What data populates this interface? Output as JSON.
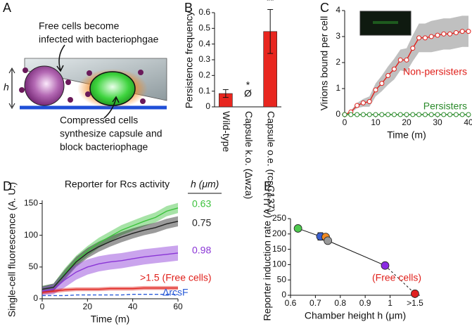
{
  "panel_a": {
    "panel": "A",
    "infected_text": [
      "Free cells become",
      "infected with bacteriophgae"
    ],
    "height_label": "h",
    "compressed_text": [
      "Compressed cells",
      "synthesize capsule and",
      "block bacteriophage"
    ]
  },
  "chart_data": [
    {
      "type": "bar",
      "panel": "B",
      "ylabel": "Persistence frequency",
      "categories": [
        "Wild-type",
        "Capsule k.o. (Δwza)",
        "Capsule o.e. (rcsC137)"
      ],
      "values": [
        0.085,
        null,
        0.48
      ],
      "errors": [
        0.025,
        null,
        0.14
      ],
      "value_labels": [
        null,
        "Ø",
        null
      ],
      "significance": [
        null,
        "*",
        "**"
      ],
      "color": "#e8261f",
      "ylim": [
        0,
        0.6
      ],
      "yticks": [
        0,
        0.1,
        0.2,
        0.3,
        0.4,
        0.5,
        0.6
      ]
    },
    {
      "type": "line",
      "panel": "C",
      "xlabel": "Time (m)",
      "ylabel": "Virions bound per cell",
      "x": [
        0,
        2,
        4,
        6,
        8,
        10,
        12,
        14,
        16,
        18,
        20,
        22,
        24,
        26,
        28,
        30,
        32,
        34,
        36,
        38,
        40
      ],
      "series": [
        {
          "name": "Non-persisters",
          "color": "#e0201b",
          "band_color": "#b0b0b0",
          "values": [
            0,
            0.1,
            0.35,
            0.45,
            0.5,
            0.95,
            1.2,
            1.5,
            1.75,
            2.1,
            2.1,
            2.55,
            2.95,
            2.95,
            3.0,
            3.05,
            3.1,
            3.1,
            3.15,
            3.2,
            3.2
          ],
          "errors": [
            0,
            0.05,
            0.1,
            0.15,
            0.2,
            0.25,
            0.3,
            0.35,
            0.4,
            0.4,
            0.45,
            0.5,
            0.55,
            0.55,
            0.6,
            0.6,
            0.6,
            0.6,
            0.6,
            0.6,
            0.6
          ]
        },
        {
          "name": "Persisters",
          "color": "#2a8a2a",
          "values": [
            0,
            0,
            0,
            0,
            0,
            0,
            0,
            0,
            0,
            0,
            0,
            0,
            0,
            0,
            0,
            0,
            0,
            0,
            0,
            0,
            0
          ]
        }
      ],
      "markers": true,
      "xlim": [
        0,
        40
      ],
      "xticks": [
        0,
        10,
        20,
        30,
        40
      ],
      "ylim": [
        0,
        4
      ],
      "yticks": [
        0,
        1,
        2,
        3,
        4
      ]
    },
    {
      "type": "line",
      "panel": "D",
      "title": "Reporter for Rcs activity",
      "xlabel": "Time (m)",
      "ylabel": "Single-cell fluorescence (A. U.)",
      "legend_title": "h (μm)",
      "x": [
        0,
        5,
        10,
        15,
        20,
        25,
        30,
        35,
        40,
        45,
        50,
        55,
        60
      ],
      "series": [
        {
          "name": "0.63",
          "color": "#3cc23c",
          "values": [
            15,
            18,
            40,
            60,
            75,
            88,
            98,
            108,
            115,
            122,
            128,
            138,
            143
          ],
          "errors": [
            5,
            6,
            8,
            8,
            8,
            8,
            8,
            8,
            8,
            8,
            8,
            8,
            8
          ]
        },
        {
          "name": "0.75",
          "color": "#222222",
          "values": [
            15,
            18,
            38,
            58,
            72,
            82,
            90,
            97,
            103,
            108,
            112,
            118,
            122
          ],
          "errors": [
            5,
            6,
            8,
            8,
            8,
            8,
            8,
            8,
            8,
            8,
            8,
            8,
            8
          ]
        },
        {
          "name": "0.98",
          "color": "#8a35d6",
          "values": [
            12,
            15,
            30,
            42,
            50,
            55,
            58,
            60,
            63,
            66,
            68,
            70,
            72
          ],
          "errors": [
            6,
            8,
            12,
            12,
            12,
            12,
            12,
            12,
            12,
            12,
            12,
            12,
            12
          ]
        },
        {
          "name": ">1.5 (Free cells)",
          "color": "#e0201b",
          "values": [
            10,
            12,
            14,
            15,
            15,
            15,
            16,
            16,
            16,
            17,
            17,
            17,
            17
          ],
          "errors": [
            3,
            3,
            3,
            3,
            3,
            3,
            3,
            3,
            3,
            3,
            3,
            3,
            3
          ]
        },
        {
          "name": "ΔrcsF",
          "color": "#2a5bd7",
          "dashed": true,
          "values": [
            5,
            5,
            5,
            6,
            6,
            6,
            6,
            6,
            7,
            7,
            7,
            7,
            7
          ]
        }
      ],
      "xlim": [
        0,
        60
      ],
      "xticks": [
        0,
        20,
        40,
        60
      ],
      "ylim": [
        0,
        155
      ],
      "yticks": [
        0,
        50,
        100,
        150
      ]
    },
    {
      "type": "scatter",
      "panel": "E",
      "xlabel": "Chamber height h (μm)",
      "ylabel": "Reporter induction rate (A.U.)",
      "annotation": "(Free cells)",
      "annotation_color": "#e0201b",
      "x": [
        0.63,
        0.72,
        0.73,
        0.75,
        0.98,
        1.1
      ],
      "values": [
        218,
        192,
        190,
        178,
        97,
        5
      ],
      "errors": [
        null,
        12,
        null,
        null,
        null,
        null
      ],
      "colors": [
        "#4ec94e",
        "#3a5fcd",
        "#f08a24",
        "#999999",
        "#8a2be2",
        "#e02020"
      ],
      "xlim": [
        0.6,
        1.12
      ],
      "xticks": [
        0.6,
        0.7,
        0.8,
        0.9,
        1,
        {
          "value": 1.1,
          "label": ">1.5"
        }
      ],
      "ylim": [
        0,
        250
      ],
      "yticks": [
        0,
        50,
        100,
        150,
        200,
        250
      ]
    }
  ]
}
